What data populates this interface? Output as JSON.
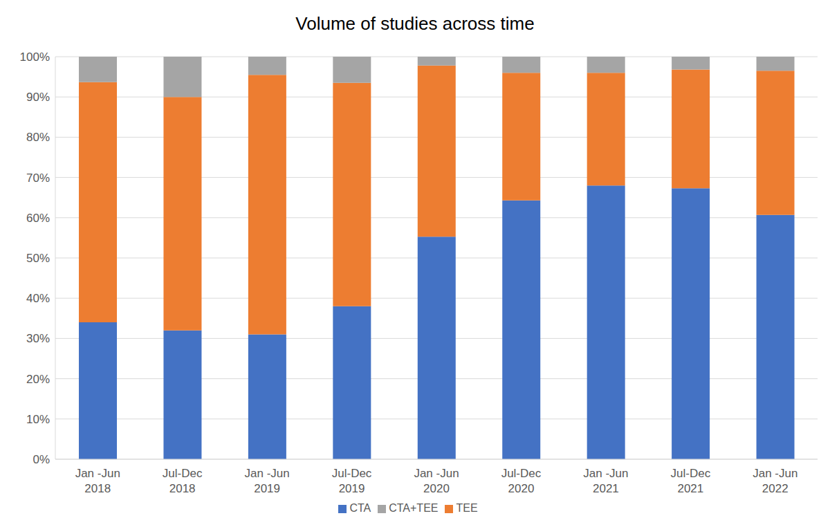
{
  "chart_data": {
    "type": "bar",
    "title": "Volume of studies across time",
    "categories": [
      "Jan -Jun 2018",
      "Jul-Dec 2018",
      "Jan -Jun 2019",
      "Jul-Dec 2019",
      "Jan -Jun 2020",
      "Jul-Dec 2020",
      "Jan -Jun 2021",
      "Jul-Dec 2021",
      "Jan -Jun 2022"
    ],
    "series": [
      {
        "name": "CTA",
        "color": "#4472c4",
        "values": [
          34,
          32,
          31,
          38,
          55.3,
          64.3,
          68,
          67.3,
          60.7
        ]
      },
      {
        "name": "TEE",
        "color": "#ed7d31",
        "values": [
          59.7,
          58,
          64.5,
          55.5,
          42.5,
          31.7,
          28,
          29.5,
          35.8
        ]
      },
      {
        "name": "CTA+TEE",
        "color": "#a5a5a5",
        "values": [
          6.3,
          10,
          4.5,
          6.5,
          2.2,
          4,
          4,
          3.2,
          3.5
        ]
      }
    ],
    "ylim": [
      0,
      100
    ],
    "yticks": [
      {
        "value": 0,
        "label": "0%"
      },
      {
        "value": 10,
        "label": "10%"
      },
      {
        "value": 20,
        "label": "20%"
      },
      {
        "value": 30,
        "label": "30%"
      },
      {
        "value": 40,
        "label": "40%"
      },
      {
        "value": 50,
        "label": "50%"
      },
      {
        "value": 60,
        "label": "60%"
      },
      {
        "value": 70,
        "label": "70%"
      },
      {
        "value": 80,
        "label": "80%"
      },
      {
        "value": 90,
        "label": "90%"
      },
      {
        "value": 100,
        "label": "100%"
      }
    ],
    "stacked": true,
    "grid": true,
    "legend": "bottom"
  }
}
